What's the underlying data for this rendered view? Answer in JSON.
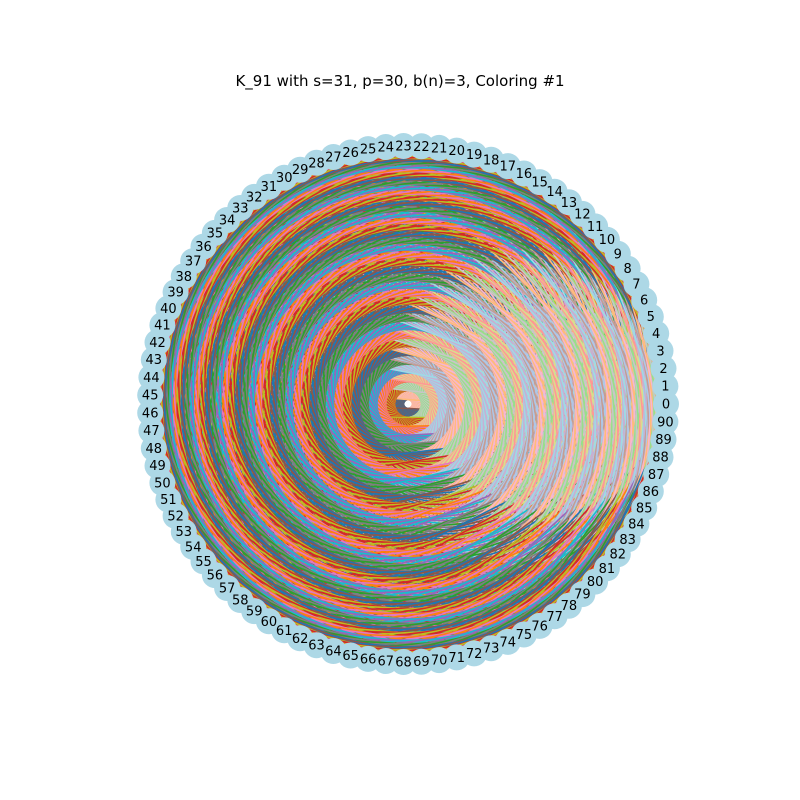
{
  "title": "K_91 with s=31, p=30, b(n)=3, Coloring #1",
  "graph": {
    "node_count": 91,
    "node_labels": [
      "0",
      "1",
      "2",
      "3",
      "4",
      "5",
      "6",
      "7",
      "8",
      "9",
      "10",
      "11",
      "12",
      "13",
      "14",
      "15",
      "16",
      "17",
      "18",
      "19",
      "20",
      "21",
      "22",
      "23",
      "24",
      "25",
      "26",
      "27",
      "28",
      "29",
      "30",
      "31",
      "32",
      "33",
      "34",
      "35",
      "36",
      "37",
      "38",
      "39",
      "40",
      "41",
      "42",
      "43",
      "44",
      "45",
      "46",
      "47",
      "48",
      "49",
      "50",
      "51",
      "52",
      "53",
      "54",
      "55",
      "56",
      "57",
      "58",
      "59",
      "60",
      "61",
      "62",
      "63",
      "64",
      "65",
      "66",
      "67",
      "68",
      "69",
      "70",
      "71",
      "72",
      "73",
      "74",
      "75",
      "76",
      "77",
      "78",
      "79",
      "80",
      "81",
      "82",
      "83",
      "84",
      "85",
      "86",
      "87",
      "88",
      "89",
      "90"
    ],
    "node_color": "#add8e6",
    "edge_palette": [
      "#1f77b4",
      "#aec7e8",
      "#ff7f0e",
      "#ffbb78",
      "#2ca02c",
      "#98df8a",
      "#d62728",
      "#ff9896",
      "#9467bd",
      "#c5b0d5",
      "#8c564b",
      "#c49c94",
      "#e377c2",
      "#f7b6d2",
      "#7f7f7f",
      "#c7c7c7",
      "#bcbd22",
      "#dbdb8d",
      "#17becf",
      "#9edae5"
    ]
  }
}
